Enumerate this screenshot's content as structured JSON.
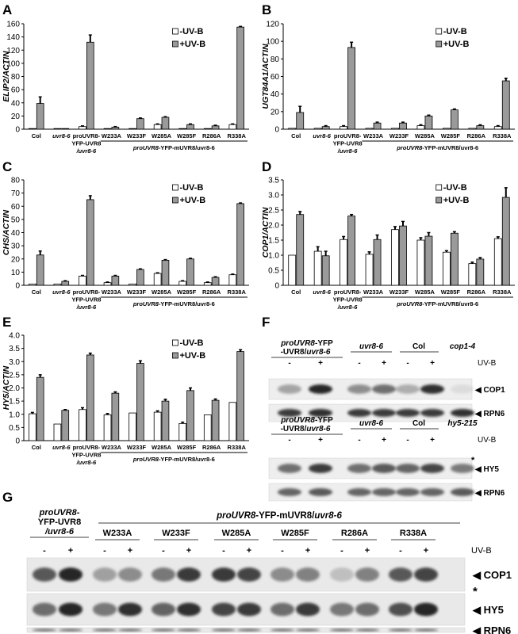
{
  "legend": {
    "minus": "-UV-B",
    "plus": "+UV-B"
  },
  "colors": {
    "minus_fill": "#ffffff",
    "plus_fill": "#9a9a9a",
    "stroke": "#000000"
  },
  "categories": [
    "Col",
    "uvr8-6",
    "proUVR8-YFP-UVR8 /uvr8-6",
    "W233A",
    "W233F",
    "W285A",
    "W285F",
    "R286A",
    "R338A"
  ],
  "cat_lines": [
    [
      "Col"
    ],
    [
      "uvr8-6"
    ],
    [
      "proUVR8-",
      "YFP-UVR8",
      "/uvr8-6"
    ],
    [
      "W233A"
    ],
    [
      "W233F"
    ],
    [
      "W285A"
    ],
    [
      "W285F"
    ],
    [
      "R286A"
    ],
    [
      "R338A"
    ]
  ],
  "cat_italic": [
    false,
    true,
    true,
    false,
    false,
    false,
    false,
    false,
    false
  ],
  "group_label": {
    "italic": "proUVR8",
    "rest": "-YFP-mUVR8/uvr8-6"
  },
  "chart_data": [
    {
      "panel": "A",
      "type": "bar",
      "ylabel": "ELIP2/ACTIN",
      "ylim": [
        0,
        160
      ],
      "yticks": [
        0,
        20,
        40,
        60,
        80,
        100,
        120,
        140,
        160
      ],
      "series": [
        {
          "name": "-UV-B",
          "values": [
            1,
            1,
            4,
            1,
            1,
            7,
            1,
            1,
            7
          ],
          "errors": [
            0,
            0,
            1,
            0,
            0,
            1,
            0,
            0,
            1
          ]
        },
        {
          "name": "+UV-B",
          "values": [
            39,
            1,
            132,
            3,
            16,
            18,
            7,
            5,
            155
          ],
          "errors": [
            10,
            0,
            11,
            1,
            1,
            1,
            1,
            1,
            1
          ]
        }
      ]
    },
    {
      "panel": "B",
      "type": "bar",
      "ylabel": "UGT84A1/ACTIN",
      "ylim": [
        0,
        120
      ],
      "yticks": [
        0,
        20,
        40,
        60,
        80,
        100,
        120
      ],
      "series": [
        {
          "name": "-UV-B",
          "values": [
            1,
            1,
            3,
            1,
            1,
            4,
            1,
            1,
            3
          ],
          "errors": [
            0,
            0,
            1,
            0,
            0,
            1,
            0,
            0,
            1
          ]
        },
        {
          "name": "+UV-B",
          "values": [
            19,
            3,
            93,
            7,
            7,
            15,
            22,
            4,
            55
          ],
          "errors": [
            7,
            1,
            6,
            1,
            1,
            1,
            1,
            1,
            3
          ]
        }
      ]
    },
    {
      "panel": "C",
      "type": "bar",
      "ylabel": "CHS/ACTIN",
      "ylim": [
        0,
        80
      ],
      "yticks": [
        0,
        10,
        20,
        30,
        40,
        50,
        60,
        70,
        80
      ],
      "series": [
        {
          "name": "-UV-B",
          "values": [
            1,
            1,
            7,
            2,
            1,
            9,
            3,
            2,
            8
          ],
          "errors": [
            0,
            0,
            0.5,
            0.5,
            0,
            0.5,
            0.5,
            0.5,
            0.5
          ]
        },
        {
          "name": "+UV-B",
          "values": [
            23,
            3,
            65,
            7,
            12,
            19,
            20,
            6,
            62
          ],
          "errors": [
            3,
            0.5,
            3,
            0.5,
            0.5,
            0.5,
            0.5,
            0.5,
            0.5
          ]
        }
      ]
    },
    {
      "panel": "D",
      "type": "bar",
      "ylabel": "COP1/ACTIN",
      "ylim": [
        0,
        3.5
      ],
      "yticks": [
        0,
        0.5,
        1.0,
        1.5,
        2.0,
        2.5,
        3.0,
        3.5
      ],
      "series": [
        {
          "name": "-UV-B",
          "values": [
            1.0,
            1.13,
            1.52,
            1.03,
            1.85,
            1.5,
            1.1,
            0.72,
            1.55
          ],
          "errors": [
            0,
            0.15,
            0.1,
            0.08,
            0.1,
            0.08,
            0.05,
            0.05,
            0.06
          ]
        },
        {
          "name": "+UV-B",
          "values": [
            2.35,
            0.98,
            2.3,
            1.52,
            1.97,
            1.63,
            1.73,
            0.87,
            2.92
          ],
          "errors": [
            0.1,
            0.15,
            0.05,
            0.15,
            0.15,
            0.12,
            0.05,
            0.05,
            0.32
          ]
        }
      ]
    },
    {
      "panel": "E",
      "type": "bar",
      "ylabel": "HY5/ACTIN",
      "ylim": [
        0,
        4.0
      ],
      "yticks": [
        0,
        0.5,
        1.0,
        1.5,
        2.0,
        2.5,
        3.0,
        3.5,
        4.0
      ],
      "series": [
        {
          "name": "-UV-B",
          "values": [
            1.02,
            0.63,
            1.18,
            0.98,
            1.05,
            1.08,
            0.65,
            0.98,
            1.45
          ],
          "errors": [
            0.05,
            0,
            0.07,
            0.05,
            0,
            0.05,
            0.05,
            0,
            0
          ]
        },
        {
          "name": "+UV-B",
          "values": [
            2.4,
            1.15,
            3.25,
            1.8,
            2.93,
            1.5,
            1.9,
            1.53,
            3.38
          ],
          "errors": [
            0.1,
            0.03,
            0.07,
            0.05,
            0.1,
            0.07,
            0.1,
            0.05,
            0.07
          ]
        }
      ]
    }
  ],
  "blots": {
    "F_top": {
      "panel": "F",
      "headers": [
        {
          "italic": "proUVR8",
          "rest": "-YFP",
          "line2": "-UVR8/uvr8-6"
        },
        {
          "italic": "uvr8-6",
          "rest": "",
          "line2": ""
        },
        {
          "italic": "",
          "rest": "Col",
          "line2": ""
        },
        {
          "italic": "cop1-4",
          "rest": "",
          "line2": ""
        }
      ],
      "uvb_label": "UV-B",
      "signs": [
        "-",
        "+",
        "-",
        "+",
        "-",
        "+"
      ],
      "bands": [
        {
          "label": "COP1",
          "intensities": [
            0.35,
            0.95,
            0.45,
            0.6,
            0.3,
            0.9,
            0.08
          ]
        },
        {
          "label": "RPN6",
          "intensities": [
            0.85,
            0.9,
            0.85,
            0.85,
            0.85,
            0.85,
            0.9
          ]
        }
      ]
    },
    "F_bottom": {
      "headers": [
        {
          "italic": "proUVR8",
          "rest": "-YFP",
          "line2": "-UVR8/uvr8-6"
        },
        {
          "italic": "uvr8-6",
          "rest": "",
          "line2": ""
        },
        {
          "italic": "",
          "rest": "Col",
          "line2": ""
        },
        {
          "italic": "hy5-215",
          "rest": "",
          "line2": ""
        }
      ],
      "uvb_label": "UV-B",
      "signs": [
        "-",
        "+",
        "-",
        "+",
        "-",
        "+"
      ],
      "asterisk": "*",
      "bands": [
        {
          "label": "HY5",
          "intensities": [
            0.6,
            0.85,
            0.6,
            0.7,
            0.65,
            0.8,
            0.55
          ]
        },
        {
          "label": "RPN6",
          "intensities": [
            0.65,
            0.7,
            0.65,
            0.65,
            0.65,
            0.65,
            0.7
          ]
        }
      ]
    },
    "G": {
      "panel": "G",
      "header_first": {
        "italic1": "proUVR8",
        "rest1": "-",
        "line2": "YFP-UVR8",
        "line3": "/uvr8-6"
      },
      "header_group": {
        "italic": "proUVR8",
        "rest": "-YFP-mUVR8/",
        "italic2": "uvr8-6"
      },
      "lanes": [
        "W233A",
        "W233F",
        "W285A",
        "W285F",
        "R286A",
        "R338A"
      ],
      "uvb_label": "UV-B",
      "signs": [
        "-",
        "+",
        "-",
        "+",
        "-",
        "+",
        "-",
        "+",
        "-",
        "+",
        "-",
        "+",
        "-",
        "+"
      ],
      "asterisk": "*",
      "bands": [
        {
          "label": "COP1",
          "intensities": [
            0.7,
            0.95,
            0.35,
            0.45,
            0.55,
            0.85,
            0.85,
            0.8,
            0.45,
            0.5,
            0.2,
            0.5,
            0.7,
            0.8
          ]
        },
        {
          "label": "HY5",
          "intensities": [
            0.6,
            0.95,
            0.55,
            0.9,
            0.65,
            0.9,
            0.8,
            0.85,
            0.6,
            0.85,
            0.55,
            0.6,
            0.75,
            0.95
          ]
        },
        {
          "label": "RPN6",
          "intensities": [
            0.8,
            0.8,
            0.8,
            0.8,
            0.8,
            0.8,
            0.8,
            0.8,
            0.8,
            0.8,
            0.8,
            0.8,
            0.8,
            0.8
          ]
        }
      ]
    }
  }
}
